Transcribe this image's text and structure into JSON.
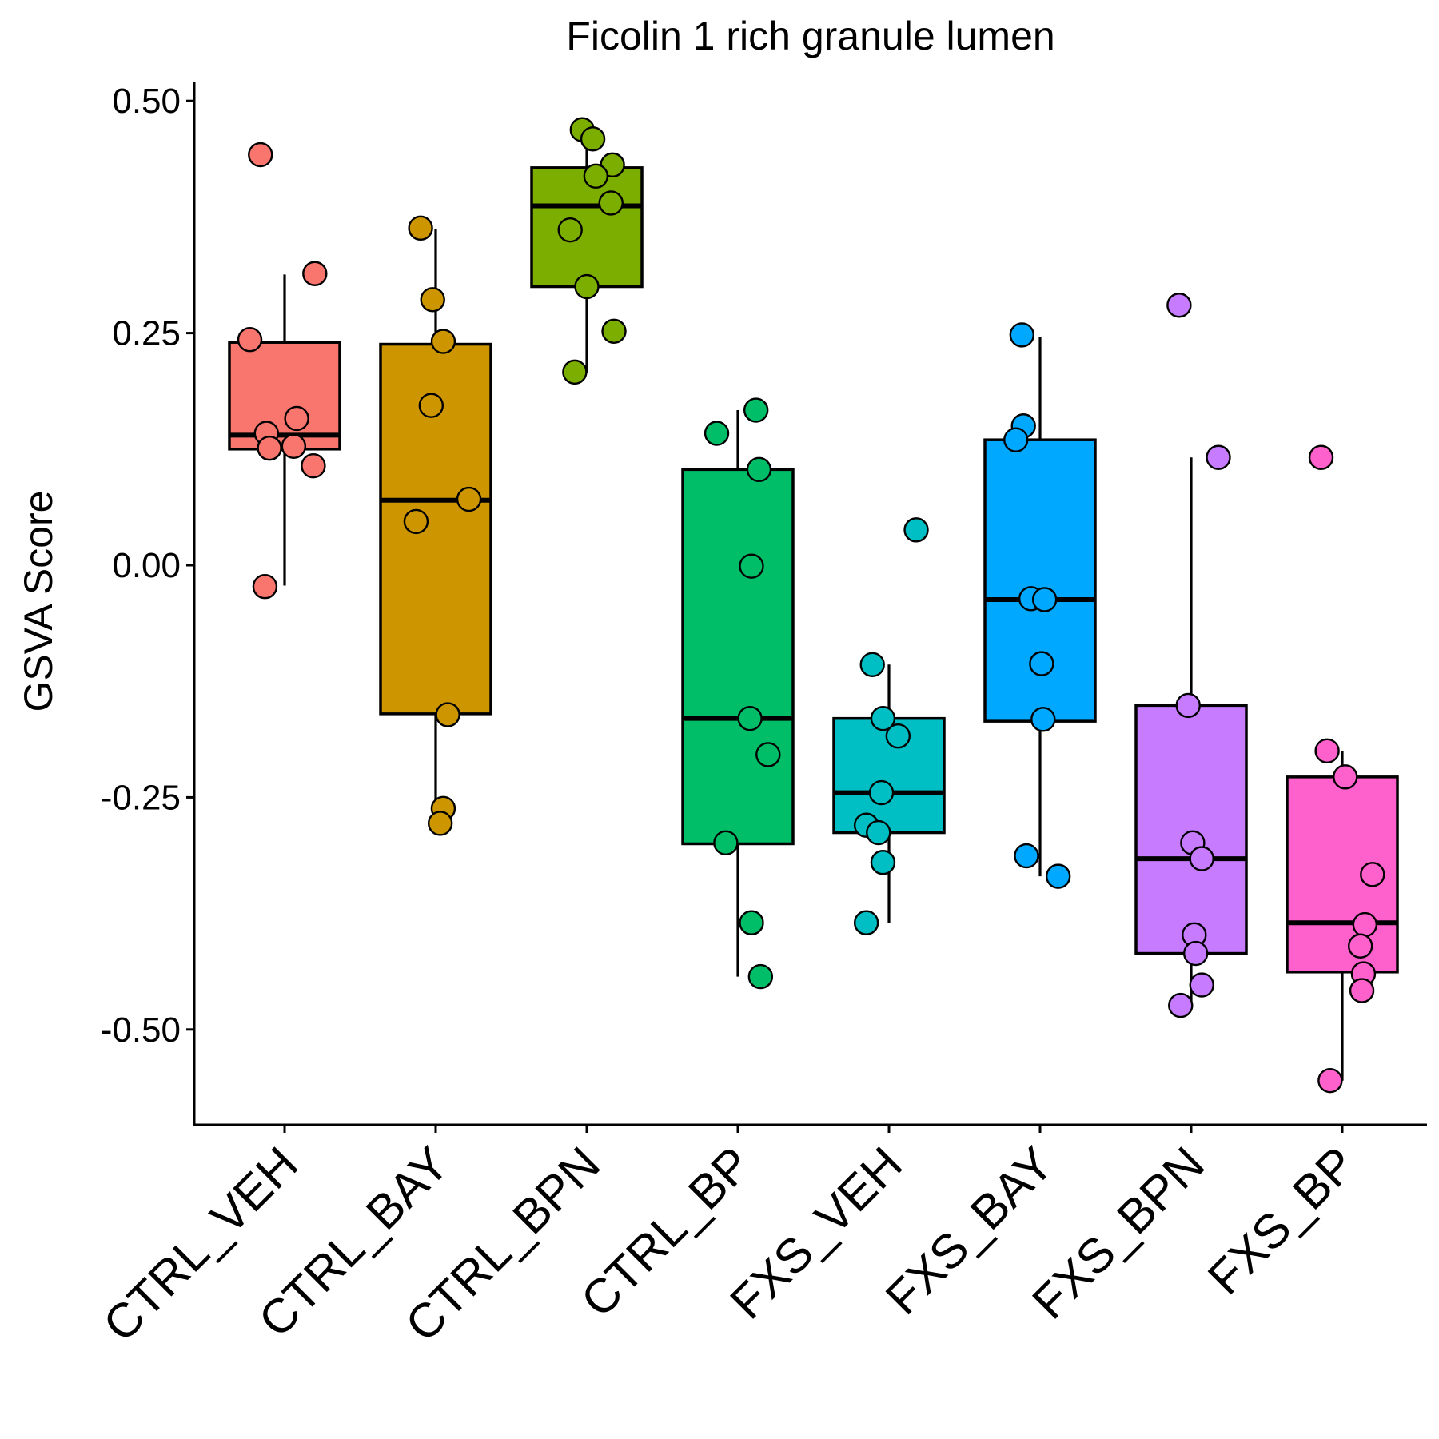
{
  "chart_data": {
    "type": "box",
    "title": "Ficolin 1 rich granule lumen",
    "xlabel": "",
    "ylabel": "GSVA Score",
    "ylim": [
      -0.58,
      0.52
    ],
    "y_ticks": [
      -0.5,
      -0.25,
      0.0,
      0.25,
      0.5
    ],
    "y_tick_labels": [
      "-0.50",
      "-0.25",
      "0.00",
      "0.25",
      "0.50"
    ],
    "grid": false,
    "legend": "none",
    "categories": [
      "CTRL_VEH",
      "CTRL_BAY",
      "CTRL_BPN",
      "CTRL_BP",
      "FXS_VEH",
      "FXS_BAY",
      "FXS_BPN",
      "FXS_BP"
    ],
    "colors": [
      "#F8766D",
      "#CD9600",
      "#7CAE00",
      "#00BE67",
      "#00BFC4",
      "#00A9FF",
      "#C77CFF",
      "#FF61CC"
    ],
    "boxes": [
      {
        "q1": 0.125,
        "median": 0.14,
        "q3": 0.24,
        "whisker_low": -0.022,
        "whisker_high": 0.313
      },
      {
        "q1": -0.16,
        "median": 0.07,
        "q3": 0.238,
        "whisker_low": -0.278,
        "whisker_high": 0.362
      },
      {
        "q1": 0.3,
        "median": 0.387,
        "q3": 0.428,
        "whisker_low": 0.207,
        "whisker_high": 0.469
      },
      {
        "q1": -0.3,
        "median": -0.165,
        "q3": 0.103,
        "whisker_low": -0.443,
        "whisker_high": 0.167
      },
      {
        "q1": -0.288,
        "median": -0.245,
        "q3": -0.165,
        "whisker_low": -0.385,
        "whisker_high": -0.107
      },
      {
        "q1": -0.168,
        "median": -0.037,
        "q3": 0.135,
        "whisker_low": -0.335,
        "whisker_high": 0.246
      },
      {
        "q1": -0.418,
        "median": -0.316,
        "q3": -0.151,
        "whisker_low": -0.473,
        "whisker_high": 0.116
      },
      {
        "q1": -0.438,
        "median": -0.385,
        "q3": -0.228,
        "whisker_low": -0.555,
        "whisker_high": -0.2
      }
    ],
    "points": [
      [
        [
          -0.16,
          0.442
        ],
        [
          0.2,
          0.314
        ],
        [
          -0.23,
          0.243
        ],
        [
          0.08,
          0.158
        ],
        [
          -0.12,
          0.142
        ],
        [
          0.06,
          0.128
        ],
        [
          -0.1,
          0.126
        ],
        [
          0.19,
          0.107
        ],
        [
          -0.13,
          -0.023
        ]
      ],
      [
        [
          -0.1,
          0.363
        ],
        [
          -0.02,
          0.286
        ],
        [
          0.05,
          0.241
        ],
        [
          -0.03,
          0.172
        ],
        [
          0.22,
          0.071
        ],
        [
          -0.13,
          0.047
        ],
        [
          0.08,
          -0.161
        ],
        [
          0.05,
          -0.262
        ],
        [
          0.03,
          -0.278
        ]
      ],
      [
        [
          -0.03,
          0.469
        ],
        [
          0.04,
          0.459
        ],
        [
          0.17,
          0.431
        ],
        [
          0.06,
          0.419
        ],
        [
          0.16,
          0.39
        ],
        [
          -0.11,
          0.361
        ],
        [
          0.0,
          0.3
        ],
        [
          0.18,
          0.252
        ],
        [
          -0.08,
          0.208
        ]
      ],
      [
        [
          0.12,
          0.167
        ],
        [
          -0.14,
          0.142
        ],
        [
          0.14,
          0.103
        ],
        [
          0.09,
          -0.001
        ],
        [
          0.08,
          -0.165
        ],
        [
          0.2,
          -0.204
        ],
        [
          -0.08,
          -0.299
        ],
        [
          0.09,
          -0.385
        ],
        [
          0.15,
          -0.443
        ]
      ],
      [
        [
          0.18,
          0.038
        ],
        [
          -0.11,
          -0.107
        ],
        [
          -0.04,
          -0.165
        ],
        [
          0.06,
          -0.184
        ],
        [
          -0.05,
          -0.245
        ],
        [
          -0.15,
          -0.28
        ],
        [
          -0.07,
          -0.288
        ],
        [
          -0.04,
          -0.32
        ],
        [
          -0.15,
          -0.385
        ]
      ],
      [
        [
          -0.12,
          0.248
        ],
        [
          -0.11,
          0.15
        ],
        [
          -0.16,
          0.135
        ],
        [
          -0.06,
          -0.036
        ],
        [
          0.03,
          -0.037
        ],
        [
          0.01,
          -0.106
        ],
        [
          0.02,
          -0.166
        ],
        [
          -0.09,
          -0.313
        ],
        [
          0.12,
          -0.335
        ]
      ],
      [
        [
          -0.08,
          0.28
        ],
        [
          0.18,
          0.116
        ],
        [
          -0.02,
          -0.151
        ],
        [
          0.01,
          -0.299
        ],
        [
          0.07,
          -0.316
        ],
        [
          0.02,
          -0.398
        ],
        [
          0.03,
          -0.418
        ],
        [
          0.07,
          -0.452
        ],
        [
          -0.07,
          -0.474
        ]
      ],
      [
        [
          -0.14,
          0.116
        ],
        [
          -0.1,
          -0.2
        ],
        [
          0.02,
          -0.228
        ],
        [
          0.2,
          -0.333
        ],
        [
          0.15,
          -0.387
        ],
        [
          0.12,
          -0.41
        ],
        [
          0.14,
          -0.44
        ],
        [
          0.13,
          -0.458
        ],
        [
          -0.08,
          -0.555
        ]
      ]
    ]
  }
}
